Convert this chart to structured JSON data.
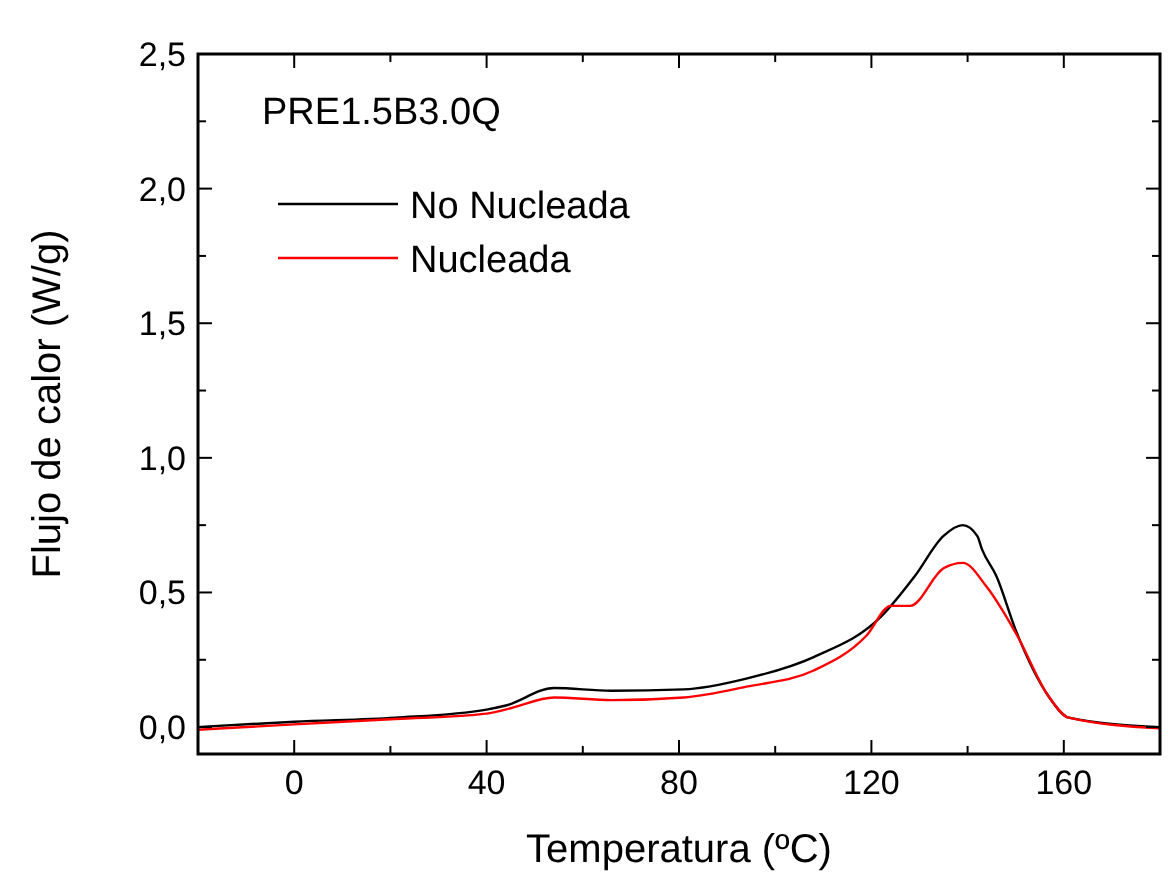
{
  "chart_data": {
    "type": "line",
    "xlabel": "Temperatura (ºC)",
    "ylabel": "Flujo de calor (W/g)",
    "annotations": [
      "PRE1.5B3.0Q"
    ],
    "xlim": [
      -20,
      180
    ],
    "ylim": [
      -0.1,
      2.5
    ],
    "xticks": [
      {
        "value": -20,
        "label": null
      },
      0,
      {
        "value": 20,
        "label": null
      },
      40,
      {
        "value": 60,
        "label": null
      },
      80,
      {
        "value": 100,
        "label": null
      },
      120,
      {
        "value": 140,
        "label": null
      },
      160,
      {
        "value": 180,
        "label": null
      }
    ],
    "yticks": [
      {
        "value": 0,
        "label": "0,0"
      },
      {
        "value": 0.25,
        "label": null
      },
      {
        "value": 0.5,
        "label": "0,5"
      },
      {
        "value": 0.75,
        "label": null
      },
      {
        "value": 1,
        "label": "1,0"
      },
      {
        "value": 1.25,
        "label": null
      },
      {
        "value": 1.5,
        "label": "1,5"
      },
      {
        "value": 1.75,
        "label": null
      },
      {
        "value": 2,
        "label": "2,0"
      },
      {
        "value": 2.25,
        "label": null
      },
      {
        "value": 2.5,
        "label": "2,5"
      }
    ],
    "legend": "top left",
    "grid": false,
    "line_style": "solid",
    "series": [
      {
        "name": "No Nucleada",
        "color": "#000000",
        "x": [
          -20,
          0,
          21,
          40,
          44,
          54,
          66,
          81,
          94,
          108,
          122,
          129,
          135,
          139,
          142,
          143,
          146,
          150,
          157,
          161,
          180
        ],
        "values": [
          0,
          0.02,
          0.035,
          0.065,
          0.08,
          0.145,
          0.135,
          0.14,
          0.18,
          0.26,
          0.41,
          0.56,
          0.71,
          0.75,
          0.71,
          0.66,
          0.56,
          0.36,
          0.11,
          0.035,
          0
        ]
      },
      {
        "name": "Nucleada",
        "color": "#ff0000",
        "x": [
          -20,
          0,
          21,
          40,
          45,
          54,
          66,
          81,
          94,
          108,
          119,
          124,
          128,
          135,
          139,
          144,
          150,
          157,
          161,
          180
        ],
        "values": [
          -0.01,
          0.01,
          0.03,
          0.05,
          0.07,
          0.11,
          0.1,
          0.11,
          0.15,
          0.21,
          0.34,
          0.45,
          0.45,
          0.59,
          0.61,
          0.52,
          0.35,
          0.11,
          0.035,
          -0.005
        ]
      }
    ]
  }
}
